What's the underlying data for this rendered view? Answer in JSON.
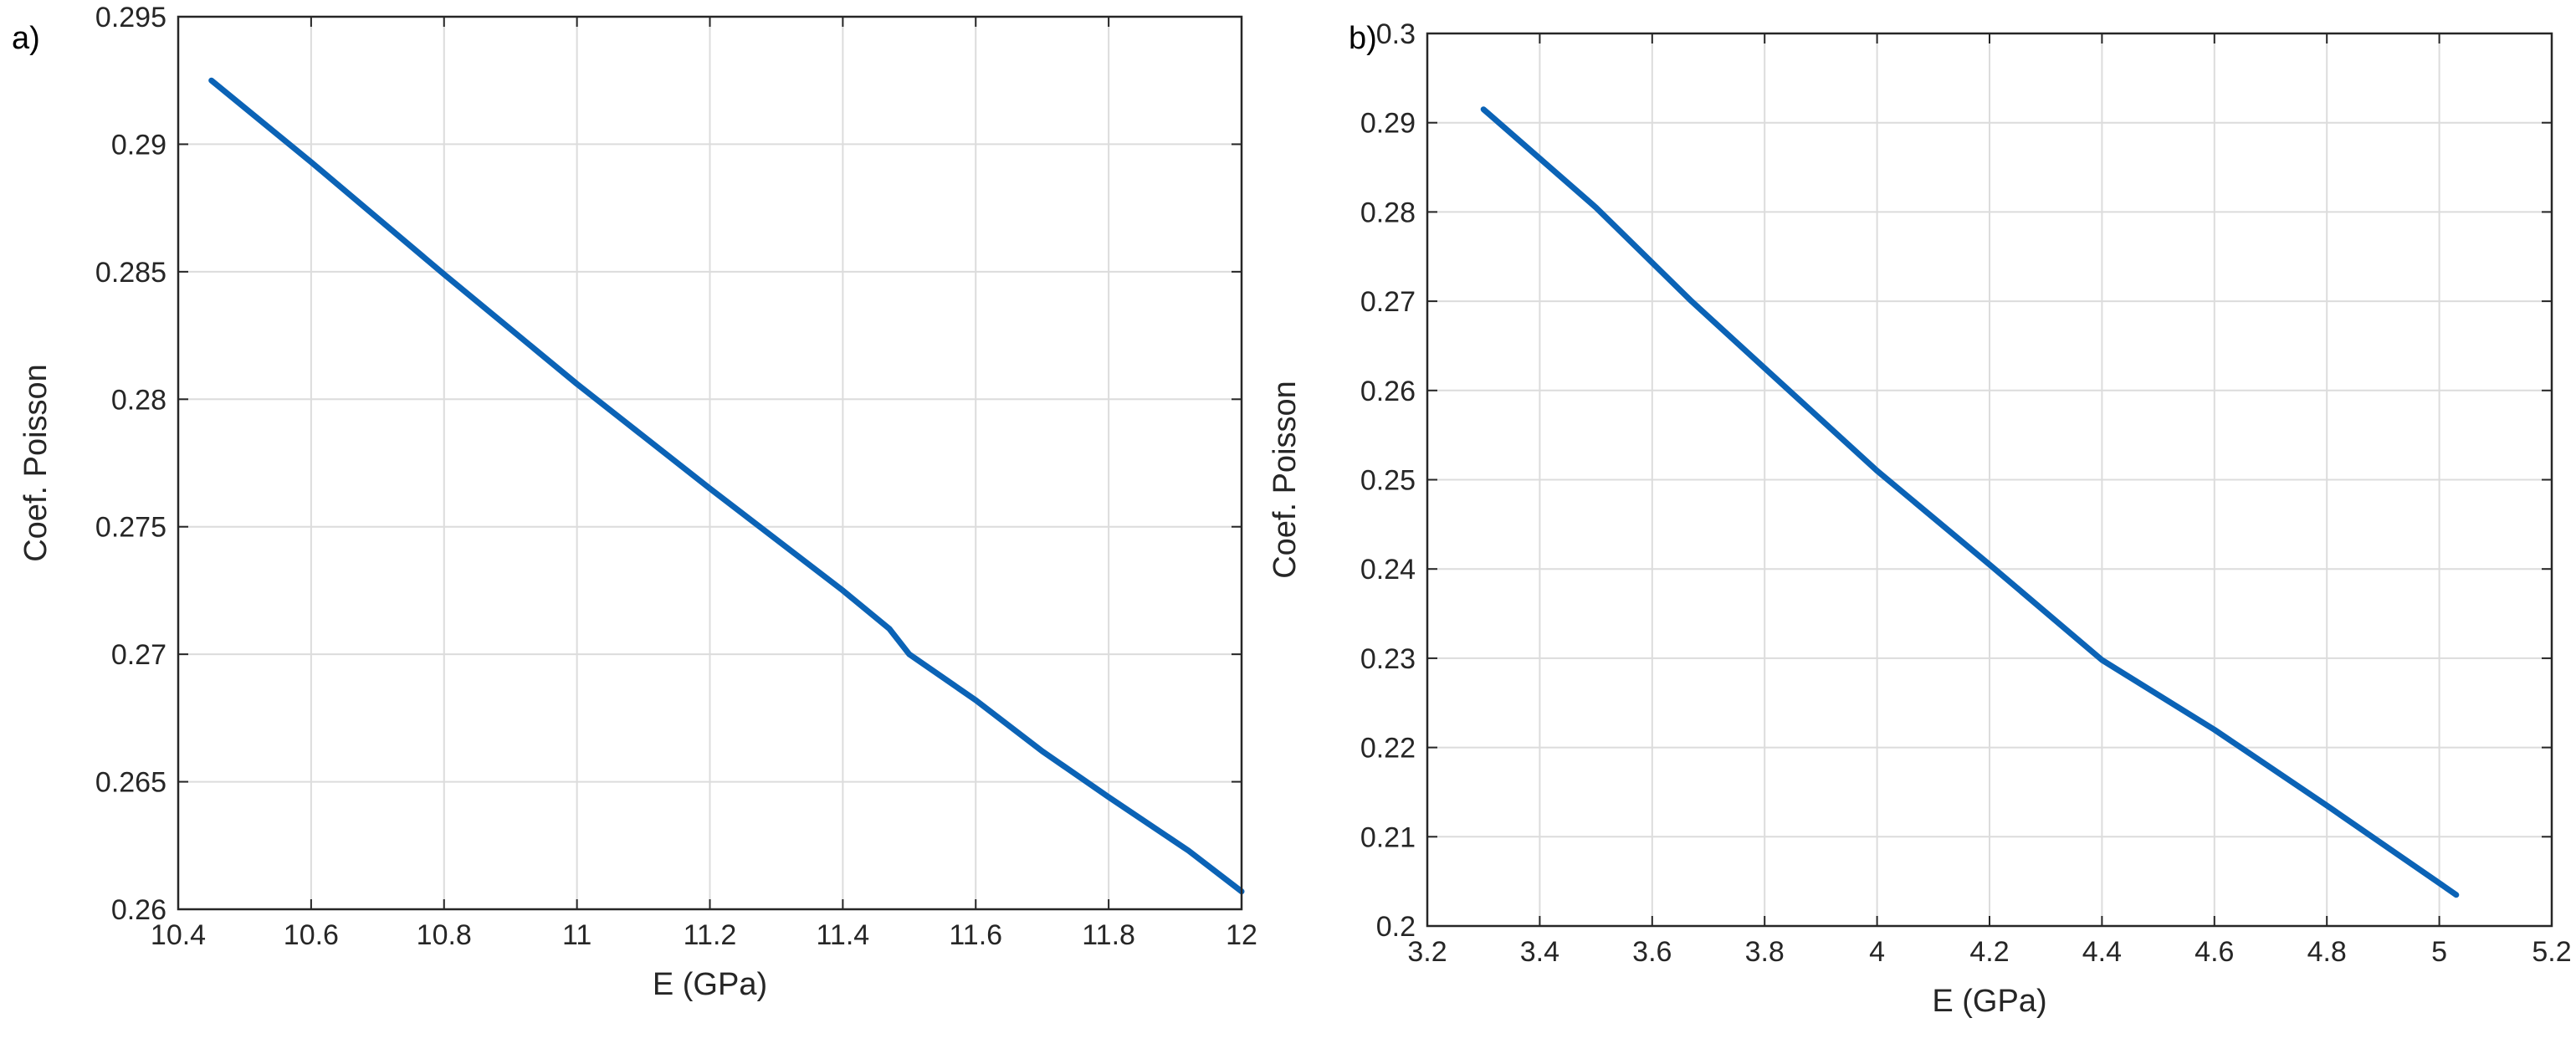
{
  "colors": {
    "line": "#0b63b6",
    "grid": "#dcdcdc",
    "axis": "#262626"
  },
  "chart_data": [
    {
      "panel_label": "a)",
      "type": "line",
      "xlabel": "E (GPa)",
      "ylabel": "Coef. Poisson",
      "xlim": [
        10.4,
        12
      ],
      "ylim": [
        0.26,
        0.295
      ],
      "xticks": [
        10.4,
        10.6,
        10.8,
        11,
        11.2,
        11.4,
        11.6,
        11.8,
        12
      ],
      "yticks": [
        0.26,
        0.265,
        0.27,
        0.275,
        0.28,
        0.285,
        0.29,
        0.295
      ],
      "xtick_labels": [
        "10.4",
        "10.6",
        "10.8",
        "11",
        "11.2",
        "11.4",
        "11.6",
        "11.8",
        "12"
      ],
      "ytick_labels": [
        "0.26",
        "0.265",
        "0.27",
        "0.275",
        "0.28",
        "0.285",
        "0.29",
        "0.295"
      ],
      "grid": true,
      "series": [
        {
          "x": [
            10.45,
            10.6,
            10.8,
            11.0,
            11.2,
            11.4,
            11.47,
            11.5,
            11.6,
            11.7,
            11.8,
            11.92,
            12.0
          ],
          "y": [
            0.2925,
            0.2893,
            0.2849,
            0.2806,
            0.2765,
            0.2725,
            0.271,
            0.27,
            0.2682,
            0.2662,
            0.2644,
            0.2623,
            0.2607
          ]
        }
      ]
    },
    {
      "panel_label": "b)",
      "type": "line",
      "xlabel": "E (GPa)",
      "ylabel": "Coef. Poisson",
      "xlim": [
        3.2,
        5.2
      ],
      "ylim": [
        0.2,
        0.3
      ],
      "xticks": [
        3.2,
        3.4,
        3.6,
        3.8,
        4,
        4.2,
        4.4,
        4.6,
        4.8,
        5,
        5.2
      ],
      "yticks": [
        0.2,
        0.21,
        0.22,
        0.23,
        0.24,
        0.25,
        0.26,
        0.27,
        0.28,
        0.29,
        0.3
      ],
      "xtick_labels": [
        "3.2",
        "3.4",
        "3.6",
        "3.8",
        "4",
        "4.2",
        "4.4",
        "4.6",
        "4.8",
        "5",
        "5.2"
      ],
      "ytick_labels": [
        "0.2",
        "0.21",
        "0.22",
        "0.23",
        "0.24",
        "0.25",
        "0.26",
        "0.27",
        "0.28",
        "0.29",
        "0.3"
      ],
      "grid": true,
      "series": [
        {
          "x": [
            3.3,
            3.5,
            3.67,
            3.8,
            4.0,
            4.2,
            4.4,
            4.6,
            4.8,
            5.03
          ],
          "y": [
            0.2915,
            0.2805,
            0.27,
            0.2625,
            0.251,
            0.2405,
            0.2298,
            0.222,
            0.2135,
            0.2035
          ]
        }
      ]
    }
  ]
}
